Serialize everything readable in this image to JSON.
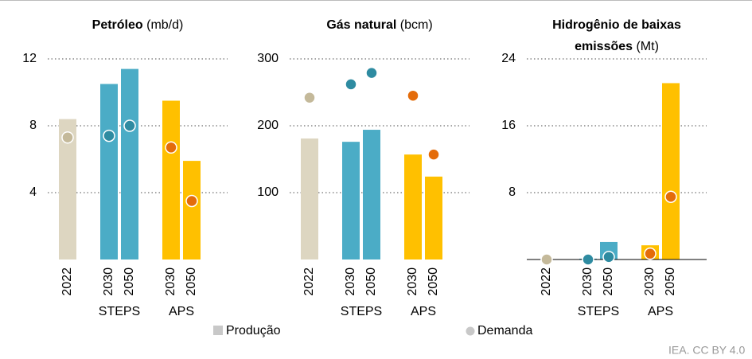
{
  "chart_data": [
    {
      "type": "bar",
      "title": "Petróleo",
      "unit": "(mb/d)",
      "categories": [
        "2022",
        "2030",
        "2050",
        "2030",
        "2050"
      ],
      "groups": [
        null,
        "STEPS",
        "STEPS",
        "APS",
        "APS"
      ],
      "series": [
        {
          "name": "Produção",
          "mark": "bar",
          "color": "#c8c8c8",
          "colors": [
            "#ddd6c1",
            "#4bacc6",
            "#4bacc6",
            "#ffc000",
            "#ffc000"
          ],
          "values": [
            8.4,
            10.5,
            11.4,
            9.5,
            5.9
          ]
        },
        {
          "name": "Demanda",
          "mark": "dot",
          "color": "#c8c8c8",
          "colors": [
            "#c4b99a",
            "#2e8ba1",
            "#2e8ba1",
            "#e46c0a",
            "#e46c0a"
          ],
          "values": [
            7.3,
            7.4,
            8.0,
            6.7,
            3.5
          ]
        }
      ],
      "ylim": [
        0,
        12
      ],
      "yticks": [
        4,
        8,
        12
      ],
      "grid": true,
      "baseline": false
    },
    {
      "type": "bar",
      "title": "Gás natural",
      "unit": "(bcm)",
      "categories": [
        "2022",
        "2030",
        "2050",
        "2030",
        "2050"
      ],
      "groups": [
        null,
        "STEPS",
        "STEPS",
        "APS",
        "APS"
      ],
      "series": [
        {
          "name": "Produção",
          "mark": "bar",
          "color": "#c8c8c8",
          "colors": [
            "#ddd6c1",
            "#4bacc6",
            "#4bacc6",
            "#ffc000",
            "#ffc000"
          ],
          "values": [
            181,
            176,
            194,
            157,
            124
          ]
        },
        {
          "name": "Demanda",
          "mark": "dot",
          "color": "#c8c8c8",
          "colors": [
            "#c4b99a",
            "#2e8ba1",
            "#2e8ba1",
            "#e46c0a",
            "#e46c0a"
          ],
          "values": [
            242,
            262,
            279,
            245,
            157
          ]
        }
      ],
      "ylim": [
        0,
        300
      ],
      "yticks": [
        100,
        200,
        300
      ],
      "grid": true,
      "baseline": false
    },
    {
      "type": "bar",
      "title": "Hidrogênio de baixas emissões",
      "unit": "(Mt)",
      "categories": [
        "2022",
        "2030",
        "2050",
        "2030",
        "2050"
      ],
      "groups": [
        null,
        "STEPS",
        "STEPS",
        "APS",
        "APS"
      ],
      "series": [
        {
          "name": "Produção",
          "mark": "bar",
          "color": "#c8c8c8",
          "colors": [
            "#ddd6c1",
            "#4bacc6",
            "#4bacc6",
            "#ffc000",
            "#ffc000"
          ],
          "values": [
            0,
            0.1,
            2.1,
            1.7,
            21.1
          ]
        },
        {
          "name": "Demanda",
          "mark": "dot",
          "color": "#c8c8c8",
          "colors": [
            "#c4b99a",
            "#2e8ba1",
            "#2e8ba1",
            "#e46c0a",
            "#e46c0a"
          ],
          "values": [
            0,
            0,
            0.3,
            0.7,
            7.5
          ]
        }
      ],
      "ylim": [
        0,
        24
      ],
      "yticks": [
        8,
        16,
        24
      ],
      "grid": true,
      "baseline": true
    }
  ],
  "source": "IEA. CC BY 4.0"
}
